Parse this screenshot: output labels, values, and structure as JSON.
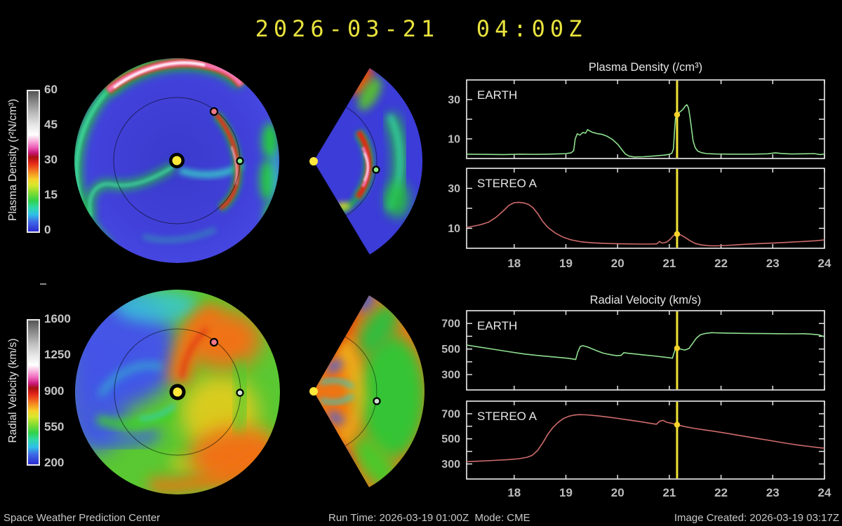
{
  "header": {
    "datetime": "2026-03-21  04:00Z"
  },
  "colorbars": {
    "density": {
      "label": "Plasma Density (r²N/cm³)",
      "min": 0,
      "max": 60,
      "ticks": [
        0,
        15,
        30,
        45,
        60
      ]
    },
    "velocity": {
      "label": "Radial Velocity (km/s)",
      "min": 200,
      "max": 1600,
      "ticks": [
        200,
        550,
        900,
        1250,
        1600
      ]
    }
  },
  "colors": {
    "background": "#000000",
    "title": "#e8e23e",
    "frame": "#efefef",
    "label": "#e6e6e6",
    "tick_label": "#bcbcbc",
    "earth_line": "#8fdf8f",
    "stereo_line": "#cf6b6b",
    "cursor": "#f2e437",
    "cursor_dot": "#f6d32b",
    "sun_marker": "#ffe83a",
    "earth_marker": "#8ae88a",
    "stereo_marker": "#f07888",
    "footer": "#c8c8c8"
  },
  "maps": {
    "marker_legend": {
      "sun": "yellow dot",
      "earth": "green dot",
      "stereo_a": "red dot"
    },
    "views": [
      "heliospheric-polar",
      "meridional-wedge"
    ]
  },
  "chart_data": {
    "type": "line",
    "x": {
      "min": 17.08,
      "max": 24.0,
      "ticks": [
        18,
        19,
        20,
        21,
        22,
        23,
        24
      ]
    },
    "cursor_day": 21.15,
    "groups": [
      {
        "title": "Plasma Density (/cm³)",
        "y": {
          "min": 0,
          "max": 40,
          "ticks": [
            10,
            20,
            30
          ],
          "labeled": [
            10,
            30
          ]
        },
        "panels": [
          {
            "label": "EARTH",
            "color": "#8fdf8f",
            "cursor_value": 22.3,
            "points": [
              [
                17.08,
                2.2
              ],
              [
                17.4,
                2.1
              ],
              [
                17.8,
                2.0
              ],
              [
                18.1,
                2.2
              ],
              [
                18.45,
                2.1
              ],
              [
                18.8,
                2.3
              ],
              [
                19.0,
                2.5
              ],
              [
                19.1,
                2.9
              ],
              [
                19.15,
                4.0
              ],
              [
                19.18,
                10.0
              ],
              [
                19.22,
                12.6
              ],
              [
                19.27,
                11.9
              ],
              [
                19.33,
                13.3
              ],
              [
                19.38,
                12.9
              ],
              [
                19.42,
                14.7
              ],
              [
                19.47,
                13.9
              ],
              [
                19.52,
                13.3
              ],
              [
                19.6,
                12.7
              ],
              [
                19.7,
                12.3
              ],
              [
                19.8,
                11.3
              ],
              [
                19.9,
                9.7
              ],
              [
                20.0,
                7.3
              ],
              [
                20.05,
                5.6
              ],
              [
                20.1,
                3.9
              ],
              [
                20.15,
                2.3
              ],
              [
                20.22,
                1.2
              ],
              [
                20.32,
                0.8
              ],
              [
                20.5,
                0.9
              ],
              [
                20.7,
                1.3
              ],
              [
                20.9,
                1.7
              ],
              [
                21.0,
                2.1
              ],
              [
                21.05,
                2.7
              ],
              [
                21.08,
                5.0
              ],
              [
                21.1,
                14.0
              ],
              [
                21.12,
                20.5
              ],
              [
                21.15,
                22.3
              ],
              [
                21.18,
                23.2
              ],
              [
                21.22,
                24.0
              ],
              [
                21.27,
                25.2
              ],
              [
                21.31,
                26.8
              ],
              [
                21.34,
                27.4
              ],
              [
                21.37,
                25.8
              ],
              [
                21.4,
                21.0
              ],
              [
                21.43,
                15.0
              ],
              [
                21.46,
                9.0
              ],
              [
                21.5,
                5.5
              ],
              [
                21.55,
                3.8
              ],
              [
                21.62,
                3.0
              ],
              [
                21.72,
                2.5
              ],
              [
                21.9,
                2.3
              ],
              [
                22.2,
                2.2
              ],
              [
                22.6,
                2.2
              ],
              [
                22.9,
                2.4
              ],
              [
                23.05,
                2.9
              ],
              [
                23.15,
                2.6
              ],
              [
                23.35,
                2.3
              ],
              [
                23.6,
                2.4
              ],
              [
                23.8,
                2.5
              ],
              [
                23.92,
                2.0
              ],
              [
                24.0,
                2.3
              ]
            ]
          },
          {
            "label": "STEREO A",
            "color": "#cf6b6b",
            "cursor_value": 7.1,
            "points": [
              [
                17.08,
                10.4
              ],
              [
                17.2,
                11.0
              ],
              [
                17.35,
                11.8
              ],
              [
                17.5,
                13.0
              ],
              [
                17.65,
                15.5
              ],
              [
                17.8,
                19.0
              ],
              [
                17.9,
                21.5
              ],
              [
                18.0,
                22.8
              ],
              [
                18.1,
                23.0
              ],
              [
                18.2,
                22.6
              ],
              [
                18.28,
                21.9
              ],
              [
                18.36,
                20.4
              ],
              [
                18.45,
                17.5
              ],
              [
                18.55,
                13.5
              ],
              [
                18.65,
                10.5
              ],
              [
                18.8,
                7.5
              ],
              [
                18.95,
                5.5
              ],
              [
                19.1,
                4.2
              ],
              [
                19.3,
                3.2
              ],
              [
                19.55,
                2.7
              ],
              [
                19.8,
                2.4
              ],
              [
                20.1,
                2.2
              ],
              [
                20.4,
                2.1
              ],
              [
                20.65,
                2.1
              ],
              [
                20.76,
                2.2
              ],
              [
                20.81,
                3.4
              ],
              [
                20.86,
                2.6
              ],
              [
                20.95,
                3.1
              ],
              [
                21.02,
                4.6
              ],
              [
                21.08,
                6.3
              ],
              [
                21.12,
                7.0
              ],
              [
                21.16,
                7.1
              ],
              [
                21.22,
                6.7
              ],
              [
                21.3,
                5.5
              ],
              [
                21.4,
                3.8
              ],
              [
                21.5,
                2.4
              ],
              [
                21.62,
                1.7
              ],
              [
                21.75,
                1.3
              ],
              [
                21.9,
                1.2
              ],
              [
                22.1,
                1.4
              ],
              [
                22.4,
                1.9
              ],
              [
                22.7,
                2.3
              ],
              [
                23.0,
                2.6
              ],
              [
                23.3,
                3.0
              ],
              [
                23.6,
                3.4
              ],
              [
                23.85,
                3.8
              ],
              [
                24.0,
                4.2
              ]
            ]
          }
        ]
      },
      {
        "title": "Radial Velocity (km/s)",
        "y": {
          "min": 180,
          "max": 800,
          "ticks": [
            300,
            400,
            500,
            600,
            700
          ],
          "labeled": [
            300,
            500,
            700
          ]
        },
        "panels": [
          {
            "label": "EARTH",
            "color": "#8fdf8f",
            "cursor_value": 506,
            "points": [
              [
                17.08,
                531
              ],
              [
                17.3,
                517
              ],
              [
                17.6,
                498
              ],
              [
                17.9,
                479
              ],
              [
                18.2,
                461
              ],
              [
                18.5,
                448
              ],
              [
                18.8,
                437
              ],
              [
                19.0,
                429
              ],
              [
                19.12,
                423
              ],
              [
                19.19,
                418
              ],
              [
                19.23,
                478
              ],
              [
                19.28,
                521
              ],
              [
                19.33,
                526
              ],
              [
                19.42,
                516
              ],
              [
                19.52,
                500
              ],
              [
                19.62,
                483
              ],
              [
                19.72,
                468
              ],
              [
                19.82,
                459
              ],
              [
                19.92,
                452
              ],
              [
                20.0,
                448
              ],
              [
                20.07,
                451
              ],
              [
                20.12,
                472
              ],
              [
                20.2,
                467
              ],
              [
                20.35,
                461
              ],
              [
                20.5,
                454
              ],
              [
                20.7,
                446
              ],
              [
                20.9,
                437
              ],
              [
                21.0,
                432
              ],
              [
                21.06,
                428
              ],
              [
                21.09,
                468
              ],
              [
                21.12,
                504
              ],
              [
                21.17,
                506
              ],
              [
                21.23,
                498
              ],
              [
                21.3,
                492
              ],
              [
                21.38,
                504
              ],
              [
                21.45,
                544
              ],
              [
                21.52,
                584
              ],
              [
                21.6,
                611
              ],
              [
                21.7,
                622
              ],
              [
                21.82,
                628
              ],
              [
                21.95,
                626
              ],
              [
                22.2,
                624
              ],
              [
                22.5,
                622
              ],
              [
                22.8,
                621
              ],
              [
                23.1,
                620
              ],
              [
                23.4,
                619
              ],
              [
                23.6,
                620
              ],
              [
                23.75,
                617
              ],
              [
                23.88,
                612
              ],
              [
                24.0,
                597
              ]
            ]
          },
          {
            "label": "STEREO A",
            "color": "#cf6b6b",
            "cursor_value": 612,
            "points": [
              [
                17.08,
                318
              ],
              [
                17.3,
                322
              ],
              [
                17.6,
                328
              ],
              [
                17.9,
                335
              ],
              [
                18.1,
                342
              ],
              [
                18.25,
                353
              ],
              [
                18.35,
                369
              ],
              [
                18.45,
                406
              ],
              [
                18.55,
                466
              ],
              [
                18.65,
                536
              ],
              [
                18.75,
                591
              ],
              [
                18.85,
                631
              ],
              [
                18.95,
                661
              ],
              [
                19.05,
                679
              ],
              [
                19.15,
                689
              ],
              [
                19.25,
                693
              ],
              [
                19.4,
                691
              ],
              [
                19.6,
                684
              ],
              [
                19.8,
                674
              ],
              [
                20.0,
                663
              ],
              [
                20.2,
                651
              ],
              [
                20.4,
                639
              ],
              [
                20.6,
                626
              ],
              [
                20.75,
                616
              ],
              [
                20.82,
                642
              ],
              [
                20.88,
                647
              ],
              [
                20.95,
                632
              ],
              [
                21.05,
                623
              ],
              [
                21.15,
                612
              ],
              [
                21.3,
                597
              ],
              [
                21.5,
                582
              ],
              [
                21.7,
                570
              ],
              [
                21.9,
                558
              ],
              [
                22.1,
                545
              ],
              [
                22.3,
                531
              ],
              [
                22.5,
                517
              ],
              [
                22.7,
                503
              ],
              [
                22.9,
                490
              ],
              [
                23.1,
                476
              ],
              [
                23.3,
                462
              ],
              [
                23.5,
                450
              ],
              [
                23.7,
                440
              ],
              [
                23.85,
                432
              ],
              [
                24.0,
                425
              ]
            ]
          }
        ]
      }
    ]
  },
  "footer": {
    "left": "Space Weather Prediction Center",
    "center": "Run Time: 2026-03-19 01:00Z  Mode: CME",
    "right": "Image Created: 2026-03-19 03:17Z"
  }
}
